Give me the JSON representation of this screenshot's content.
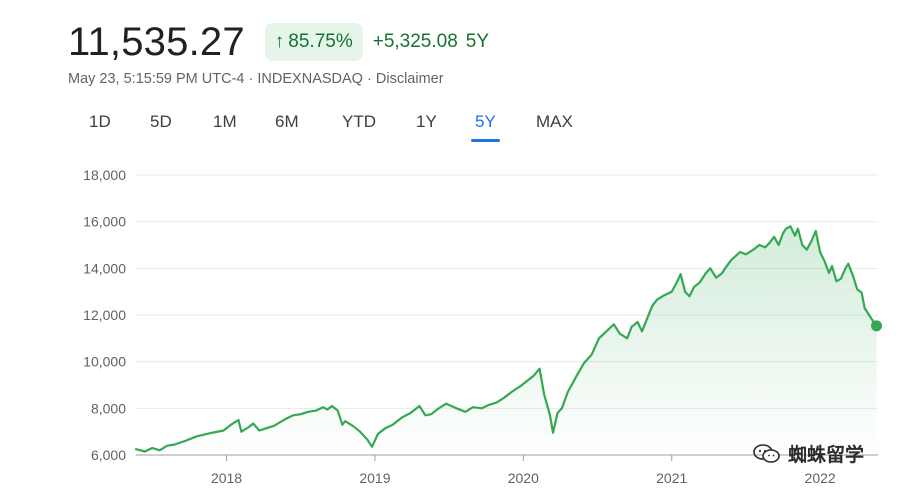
{
  "header": {
    "price": "11,535.27",
    "pct_change": "85.75%",
    "abs_change": "+5,325.08",
    "period": "5Y",
    "meta_time": "May 23, 5:15:59 PM UTC-4",
    "meta_exchange": "INDEXNASDAQ",
    "meta_disclaimer": "Disclaimer",
    "up_arrow": "↑",
    "sep": "·"
  },
  "tabs": [
    {
      "label": "1D"
    },
    {
      "label": "5D"
    },
    {
      "label": "1M"
    },
    {
      "label": "6M"
    },
    {
      "label": "YTD"
    },
    {
      "label": "1Y"
    },
    {
      "label": "5Y"
    },
    {
      "label": "MAX"
    }
  ],
  "active_tab": "5Y",
  "colors": {
    "line": "#34a853",
    "fill": "#34a853",
    "accent_text": "#137333",
    "pill_bg": "#e6f4ea",
    "active_tab": "#1a73e8",
    "grid": "#e8eaed",
    "axis_text": "#5f6368"
  },
  "watermark": {
    "text": "蜘蛛留学",
    "icon": "wechat-icon"
  },
  "chart_data": {
    "type": "area",
    "ylim": [
      6000,
      18000
    ],
    "yticks": [
      6000,
      8000,
      10000,
      12000,
      14000,
      16000,
      18000
    ],
    "ytick_labels": [
      "6,000",
      "8,000",
      "10,000",
      "12,000",
      "14,000",
      "16,000",
      "18,000"
    ],
    "xlim": [
      2017.39,
      2022.39
    ],
    "xticks": [
      2018,
      2019,
      2020,
      2021,
      2022
    ],
    "xtick_labels": [
      "2018",
      "2019",
      "2020",
      "2021",
      "2022"
    ],
    "grid": true,
    "series": [
      {
        "x": [
          2017.39,
          2017.45,
          2017.5,
          2017.55,
          2017.6,
          2017.65,
          2017.72,
          2017.8,
          2017.9,
          2017.98,
          2018.03,
          2018.08,
          2018.1,
          2018.15,
          2018.18,
          2018.22,
          2018.27,
          2018.32,
          2018.4,
          2018.45,
          2018.5,
          2018.55,
          2018.6,
          2018.65,
          2018.68,
          2018.71,
          2018.75,
          2018.78,
          2018.8,
          2018.85,
          2018.9,
          2018.95,
          2018.98,
          2019.02,
          2019.07,
          2019.12,
          2019.18,
          2019.24,
          2019.3,
          2019.34,
          2019.38,
          2019.43,
          2019.48,
          2019.55,
          2019.61,
          2019.66,
          2019.72,
          2019.77,
          2019.82,
          2019.87,
          2019.92,
          2019.98,
          2020.02,
          2020.07,
          2020.11,
          2020.14,
          2020.18,
          2020.2,
          2020.23,
          2020.26,
          2020.3,
          2020.36,
          2020.41,
          2020.46,
          2020.51,
          2020.56,
          2020.61,
          2020.65,
          2020.7,
          2020.73,
          2020.77,
          2020.8,
          2020.85,
          2020.87,
          2020.9,
          2020.95,
          2021.0,
          2021.03,
          2021.06,
          2021.09,
          2021.12,
          2021.15,
          2021.19,
          2021.23,
          2021.26,
          2021.3,
          2021.34,
          2021.36,
          2021.4,
          2021.46,
          2021.5,
          2021.55,
          2021.59,
          2021.63,
          2021.66,
          2021.69,
          2021.72,
          2021.75,
          2021.77,
          2021.8,
          2021.83,
          2021.85,
          2021.88,
          2021.91,
          2021.94,
          2021.97,
          2022.0,
          2022.03,
          2022.06,
          2022.08,
          2022.11,
          2022.14,
          2022.17,
          2022.19,
          2022.22,
          2022.25,
          2022.28,
          2022.3,
          2022.33,
          2022.35,
          2022.38
        ],
        "y": [
          6250,
          6150,
          6300,
          6200,
          6400,
          6450,
          6600,
          6800,
          6950,
          7050,
          7300,
          7500,
          7000,
          7200,
          7350,
          7050,
          7150,
          7250,
          7550,
          7700,
          7750,
          7850,
          7900,
          8050,
          7950,
          8100,
          7900,
          7300,
          7450,
          7250,
          7000,
          6650,
          6350,
          6900,
          7150,
          7300,
          7600,
          7800,
          8100,
          7700,
          7750,
          8000,
          8200,
          8000,
          7850,
          8050,
          8000,
          8150,
          8250,
          8450,
          8700,
          8950,
          9150,
          9400,
          9700,
          8600,
          7700,
          6950,
          7800,
          8000,
          8700,
          9400,
          9950,
          10300,
          11000,
          11300,
          11600,
          11200,
          11000,
          11500,
          11700,
          11300,
          12100,
          12400,
          12650,
          12850,
          13000,
          13350,
          13750,
          13000,
          12800,
          13200,
          13400,
          13800,
          14000,
          13600,
          13800,
          14000,
          14350,
          14700,
          14600,
          14800,
          15000,
          14900,
          15100,
          15350,
          15000,
          15500,
          15700,
          15800,
          15400,
          15700,
          15000,
          14800,
          15150,
          15600,
          14700,
          14300,
          13800,
          14100,
          13450,
          13550,
          14000,
          14200,
          13700,
          13100,
          12950,
          12300,
          12000,
          11800,
          11535.27
        ]
      }
    ]
  }
}
